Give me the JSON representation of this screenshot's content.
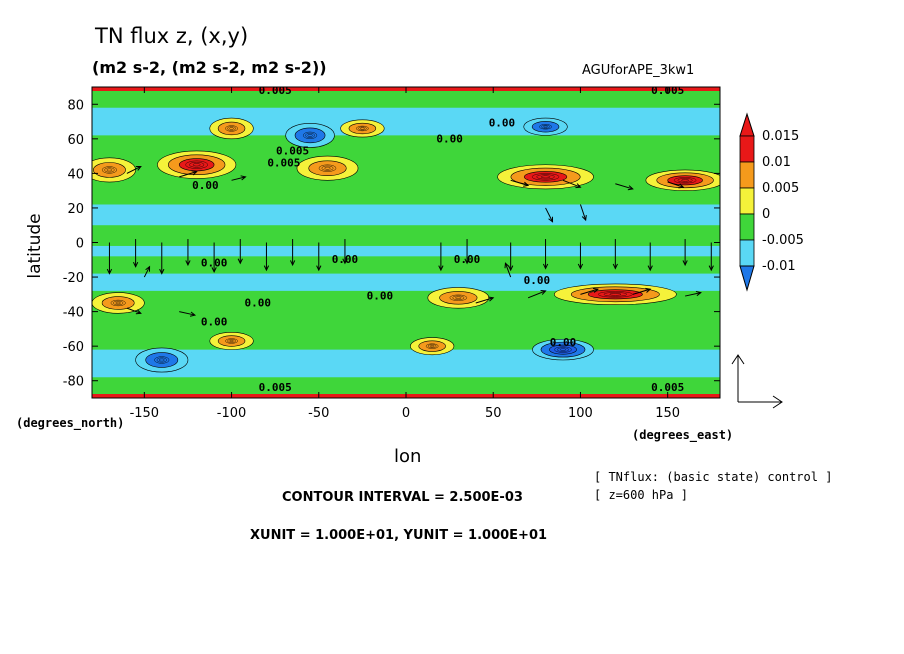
{
  "header": {
    "title": "TN flux z, (x,y)",
    "units": "(m2 s-2, (m2 s-2, m2 s-2))",
    "dataset": "AGUforAPE_3kw1"
  },
  "axes": {
    "ylabel": "latitude",
    "xlabel": "lon",
    "y_units": "(degrees_north)",
    "x_units": "(degrees_east)"
  },
  "footer": {
    "contour_interval": "CONTOUR INTERVAL = 2.500E-03",
    "unit_scale": "XUNIT = 1.000E+01, YUNIT = 1.000E+01",
    "experiment": "[ TNflux: (basic state) control ]",
    "level": "[ z=600 hPa ]"
  },
  "plot_labels": [
    {
      "text": "0.005",
      "lon": -75,
      "lat": 86
    },
    {
      "text": "0.005",
      "lon": 150,
      "lat": 86
    },
    {
      "text": "0.005",
      "lon": -75,
      "lat": -86
    },
    {
      "text": "0.005",
      "lon": 150,
      "lat": -86
    },
    {
      "text": "0.00",
      "lon": 25,
      "lat": 58
    },
    {
      "text": "0.00",
      "lon": 55,
      "lat": 67
    },
    {
      "text": "0.005",
      "lon": -70,
      "lat": 44
    },
    {
      "text": "0.005",
      "lon": -65,
      "lat": 51
    },
    {
      "text": "0.00",
      "lon": -115,
      "lat": 31
    },
    {
      "text": "0.00",
      "lon": -110,
      "lat": -14
    },
    {
      "text": "0.00",
      "lon": -35,
      "lat": -12
    },
    {
      "text": "0.00",
      "lon": 35,
      "lat": -12
    },
    {
      "text": "0.00",
      "lon": -85,
      "lat": -37
    },
    {
      "text": "0.00",
      "lon": -15,
      "lat": -33
    },
    {
      "text": "0.00",
      "lon": -110,
      "lat": -48
    },
    {
      "text": "0.00",
      "lon": 90,
      "lat": -60
    },
    {
      "text": "0.00",
      "lon": 75,
      "lat": -24
    }
  ],
  "chart_data": {
    "type": "heatmap",
    "subtype": "filled contour map with vector field",
    "x_field": "longitude",
    "y_field": "latitude",
    "xlim": [
      -180,
      180
    ],
    "ylim": [
      -90,
      90
    ],
    "xticks": [
      -150,
      -100,
      -50,
      0,
      50,
      100,
      150
    ],
    "yticks": [
      -80,
      -60,
      -40,
      -20,
      0,
      20,
      40,
      60,
      80
    ],
    "contour_interval": 0.0025,
    "colorbar": {
      "levels": [
        "-0.01",
        "-0.005",
        "0",
        "0.005",
        "0.01",
        "0.015"
      ],
      "colors": [
        "#1f78e8",
        "#5ad8f5",
        "#3fd63a",
        "#f5f23a",
        "#f59a1c",
        "#e81818"
      ],
      "under_color": "#1f5ee8",
      "over_color": "#e81818"
    },
    "features": [
      {
        "kind": "positive",
        "value": 0.015,
        "lon": -120,
        "lat": 45,
        "w": 45,
        "h": 16
      },
      {
        "kind": "positive",
        "value": 0.012,
        "lon": -170,
        "lat": 42,
        "w": 30,
        "h": 14
      },
      {
        "kind": "positive",
        "value": 0.012,
        "lon": -45,
        "lat": 43,
        "w": 35,
        "h": 14
      },
      {
        "kind": "positive",
        "value": 0.015,
        "lon": 80,
        "lat": 38,
        "w": 55,
        "h": 14
      },
      {
        "kind": "positive",
        "value": 0.015,
        "lon": 160,
        "lat": 36,
        "w": 45,
        "h": 12
      },
      {
        "kind": "positive",
        "value": 0.015,
        "lon": 120,
        "lat": -30,
        "w": 70,
        "h": 12
      },
      {
        "kind": "positive",
        "value": 0.012,
        "lon": 30,
        "lat": -32,
        "w": 35,
        "h": 12
      },
      {
        "kind": "positive",
        "value": 0.012,
        "lon": -165,
        "lat": -35,
        "w": 30,
        "h": 12
      },
      {
        "kind": "positive",
        "value": 0.01,
        "lon": -100,
        "lat": -57,
        "w": 25,
        "h": 10
      },
      {
        "kind": "positive",
        "value": 0.01,
        "lon": 15,
        "lat": -60,
        "w": 25,
        "h": 10
      },
      {
        "kind": "positive",
        "value": 0.008,
        "lon": -100,
        "lat": 66,
        "w": 25,
        "h": 12
      },
      {
        "kind": "positive",
        "value": 0.008,
        "lon": -25,
        "lat": 66,
        "w": 25,
        "h": 10
      },
      {
        "kind": "negative",
        "value": -0.01,
        "lon": -55,
        "lat": 62,
        "w": 28,
        "h": 14
      },
      {
        "kind": "negative",
        "value": -0.01,
        "lon": -140,
        "lat": -68,
        "w": 30,
        "h": 14
      },
      {
        "kind": "negative",
        "value": -0.012,
        "lon": 90,
        "lat": -62,
        "w": 35,
        "h": 12
      },
      {
        "kind": "negative",
        "value": -0.008,
        "lon": 80,
        "lat": 67,
        "w": 25,
        "h": 10
      }
    ],
    "vectors": [
      {
        "lon": -170,
        "lat": 0,
        "u": 0,
        "v": -18
      },
      {
        "lon": -155,
        "lat": 2,
        "u": 0,
        "v": -16
      },
      {
        "lon": -140,
        "lat": 0,
        "u": 0,
        "v": -18
      },
      {
        "lon": -125,
        "lat": 2,
        "u": 0,
        "v": -15
      },
      {
        "lon": -110,
        "lat": 0,
        "u": 0,
        "v": -17
      },
      {
        "lon": -95,
        "lat": 2,
        "u": 0,
        "v": -14
      },
      {
        "lon": -80,
        "lat": 0,
        "u": 0,
        "v": -16
      },
      {
        "lon": -65,
        "lat": 2,
        "u": 0,
        "v": -15
      },
      {
        "lon": -50,
        "lat": 0,
        "u": 0,
        "v": -16
      },
      {
        "lon": -35,
        "lat": 2,
        "u": 0,
        "v": -14
      },
      {
        "lon": 20,
        "lat": 0,
        "u": 0,
        "v": -16
      },
      {
        "lon": 35,
        "lat": 2,
        "u": 0,
        "v": -14
      },
      {
        "lon": 60,
        "lat": 0,
        "u": 0,
        "v": -16
      },
      {
        "lon": 80,
        "lat": 2,
        "u": 0,
        "v": -17
      },
      {
        "lon": 100,
        "lat": 0,
        "u": 0,
        "v": -15
      },
      {
        "lon": 120,
        "lat": 2,
        "u": 0,
        "v": -17
      },
      {
        "lon": 140,
        "lat": 0,
        "u": 0,
        "v": -16
      },
      {
        "lon": 160,
        "lat": 2,
        "u": 0,
        "v": -15
      },
      {
        "lon": 175,
        "lat": 0,
        "u": 0,
        "v": -16
      },
      {
        "lon": -160,
        "lat": 40,
        "u": 8,
        "v": 4
      },
      {
        "lon": -130,
        "lat": 38,
        "u": 10,
        "v": 3
      },
      {
        "lon": -100,
        "lat": 36,
        "u": 8,
        "v": 2
      },
      {
        "lon": 60,
        "lat": 36,
        "u": 10,
        "v": -3
      },
      {
        "lon": 90,
        "lat": 36,
        "u": 10,
        "v": -4
      },
      {
        "lon": 120,
        "lat": 34,
        "u": 10,
        "v": -3
      },
      {
        "lon": 150,
        "lat": 35,
        "u": 9,
        "v": -3
      },
      {
        "lon": -160,
        "lat": -38,
        "u": 8,
        "v": -3
      },
      {
        "lon": -130,
        "lat": -40,
        "u": 9,
        "v": -2
      },
      {
        "lon": 40,
        "lat": -35,
        "u": 10,
        "v": 3
      },
      {
        "lon": 70,
        "lat": -32,
        "u": 10,
        "v": 4
      },
      {
        "lon": 100,
        "lat": -30,
        "u": 10,
        "v": 3
      },
      {
        "lon": 130,
        "lat": -30,
        "u": 10,
        "v": 3
      },
      {
        "lon": 160,
        "lat": -31,
        "u": 9,
        "v": 2
      },
      {
        "lon": 80,
        "lat": 20,
        "u": 4,
        "v": -8
      },
      {
        "lon": 100,
        "lat": 22,
        "u": 3,
        "v": -9
      },
      {
        "lon": 60,
        "lat": -20,
        "u": -3,
        "v": 8
      },
      {
        "lon": -150,
        "lat": -20,
        "u": 3,
        "v": 6
      }
    ]
  }
}
